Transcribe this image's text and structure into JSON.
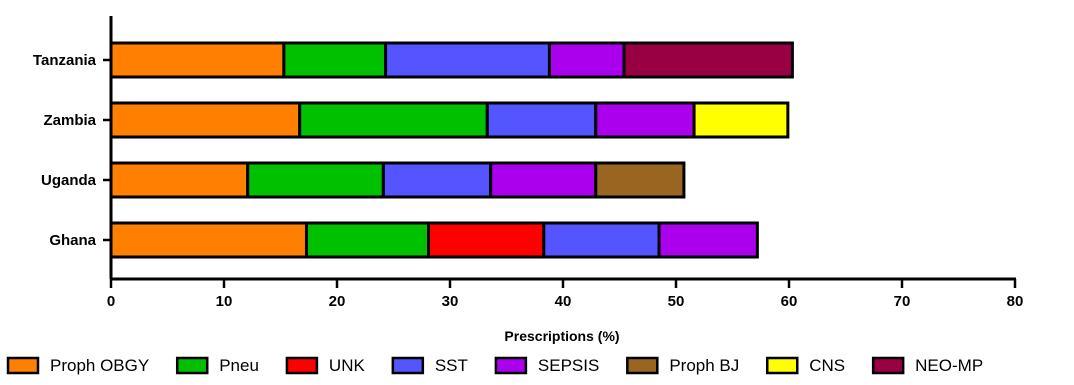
{
  "chart_data": {
    "type": "bar",
    "orientation": "horizontal",
    "stacked": true,
    "title": "",
    "xlabel": "Prescriptions (%)",
    "ylabel": "",
    "xlim": [
      0,
      80
    ],
    "xticks": [
      0,
      10,
      20,
      30,
      40,
      50,
      60,
      70,
      80
    ],
    "grid": false,
    "legend_position": "bottom",
    "categories": [
      "Tanzania",
      "Zambia",
      "Uganda",
      "Ghana"
    ],
    "series": [
      {
        "name": "Proph OBGY",
        "color": "#FF8000",
        "values": [
          15.3,
          16.7,
          12.1,
          17.3
        ]
      },
      {
        "name": "Pneu",
        "color": "#00C000",
        "values": [
          9.0,
          16.6,
          12.0,
          10.8
        ]
      },
      {
        "name": "UNK",
        "color": "#FF0000",
        "values": [
          0,
          0,
          0,
          10.2
        ]
      },
      {
        "name": "SST",
        "color": "#5555FF",
        "values": [
          14.5,
          9.6,
          9.5,
          10.2
        ]
      },
      {
        "name": "SEPSIS",
        "color": "#AA00EE",
        "values": [
          6.6,
          8.7,
          9.3,
          8.7
        ]
      },
      {
        "name": "Proph BJ",
        "color": "#996622",
        "values": [
          0,
          0,
          7.8,
          0
        ]
      },
      {
        "name": "CNS",
        "color": "#FFFF00",
        "values": [
          0,
          8.3,
          0,
          0
        ]
      },
      {
        "name": "NEO-MP",
        "color": "#990044",
        "values": [
          14.9,
          0,
          0,
          0
        ]
      }
    ]
  }
}
